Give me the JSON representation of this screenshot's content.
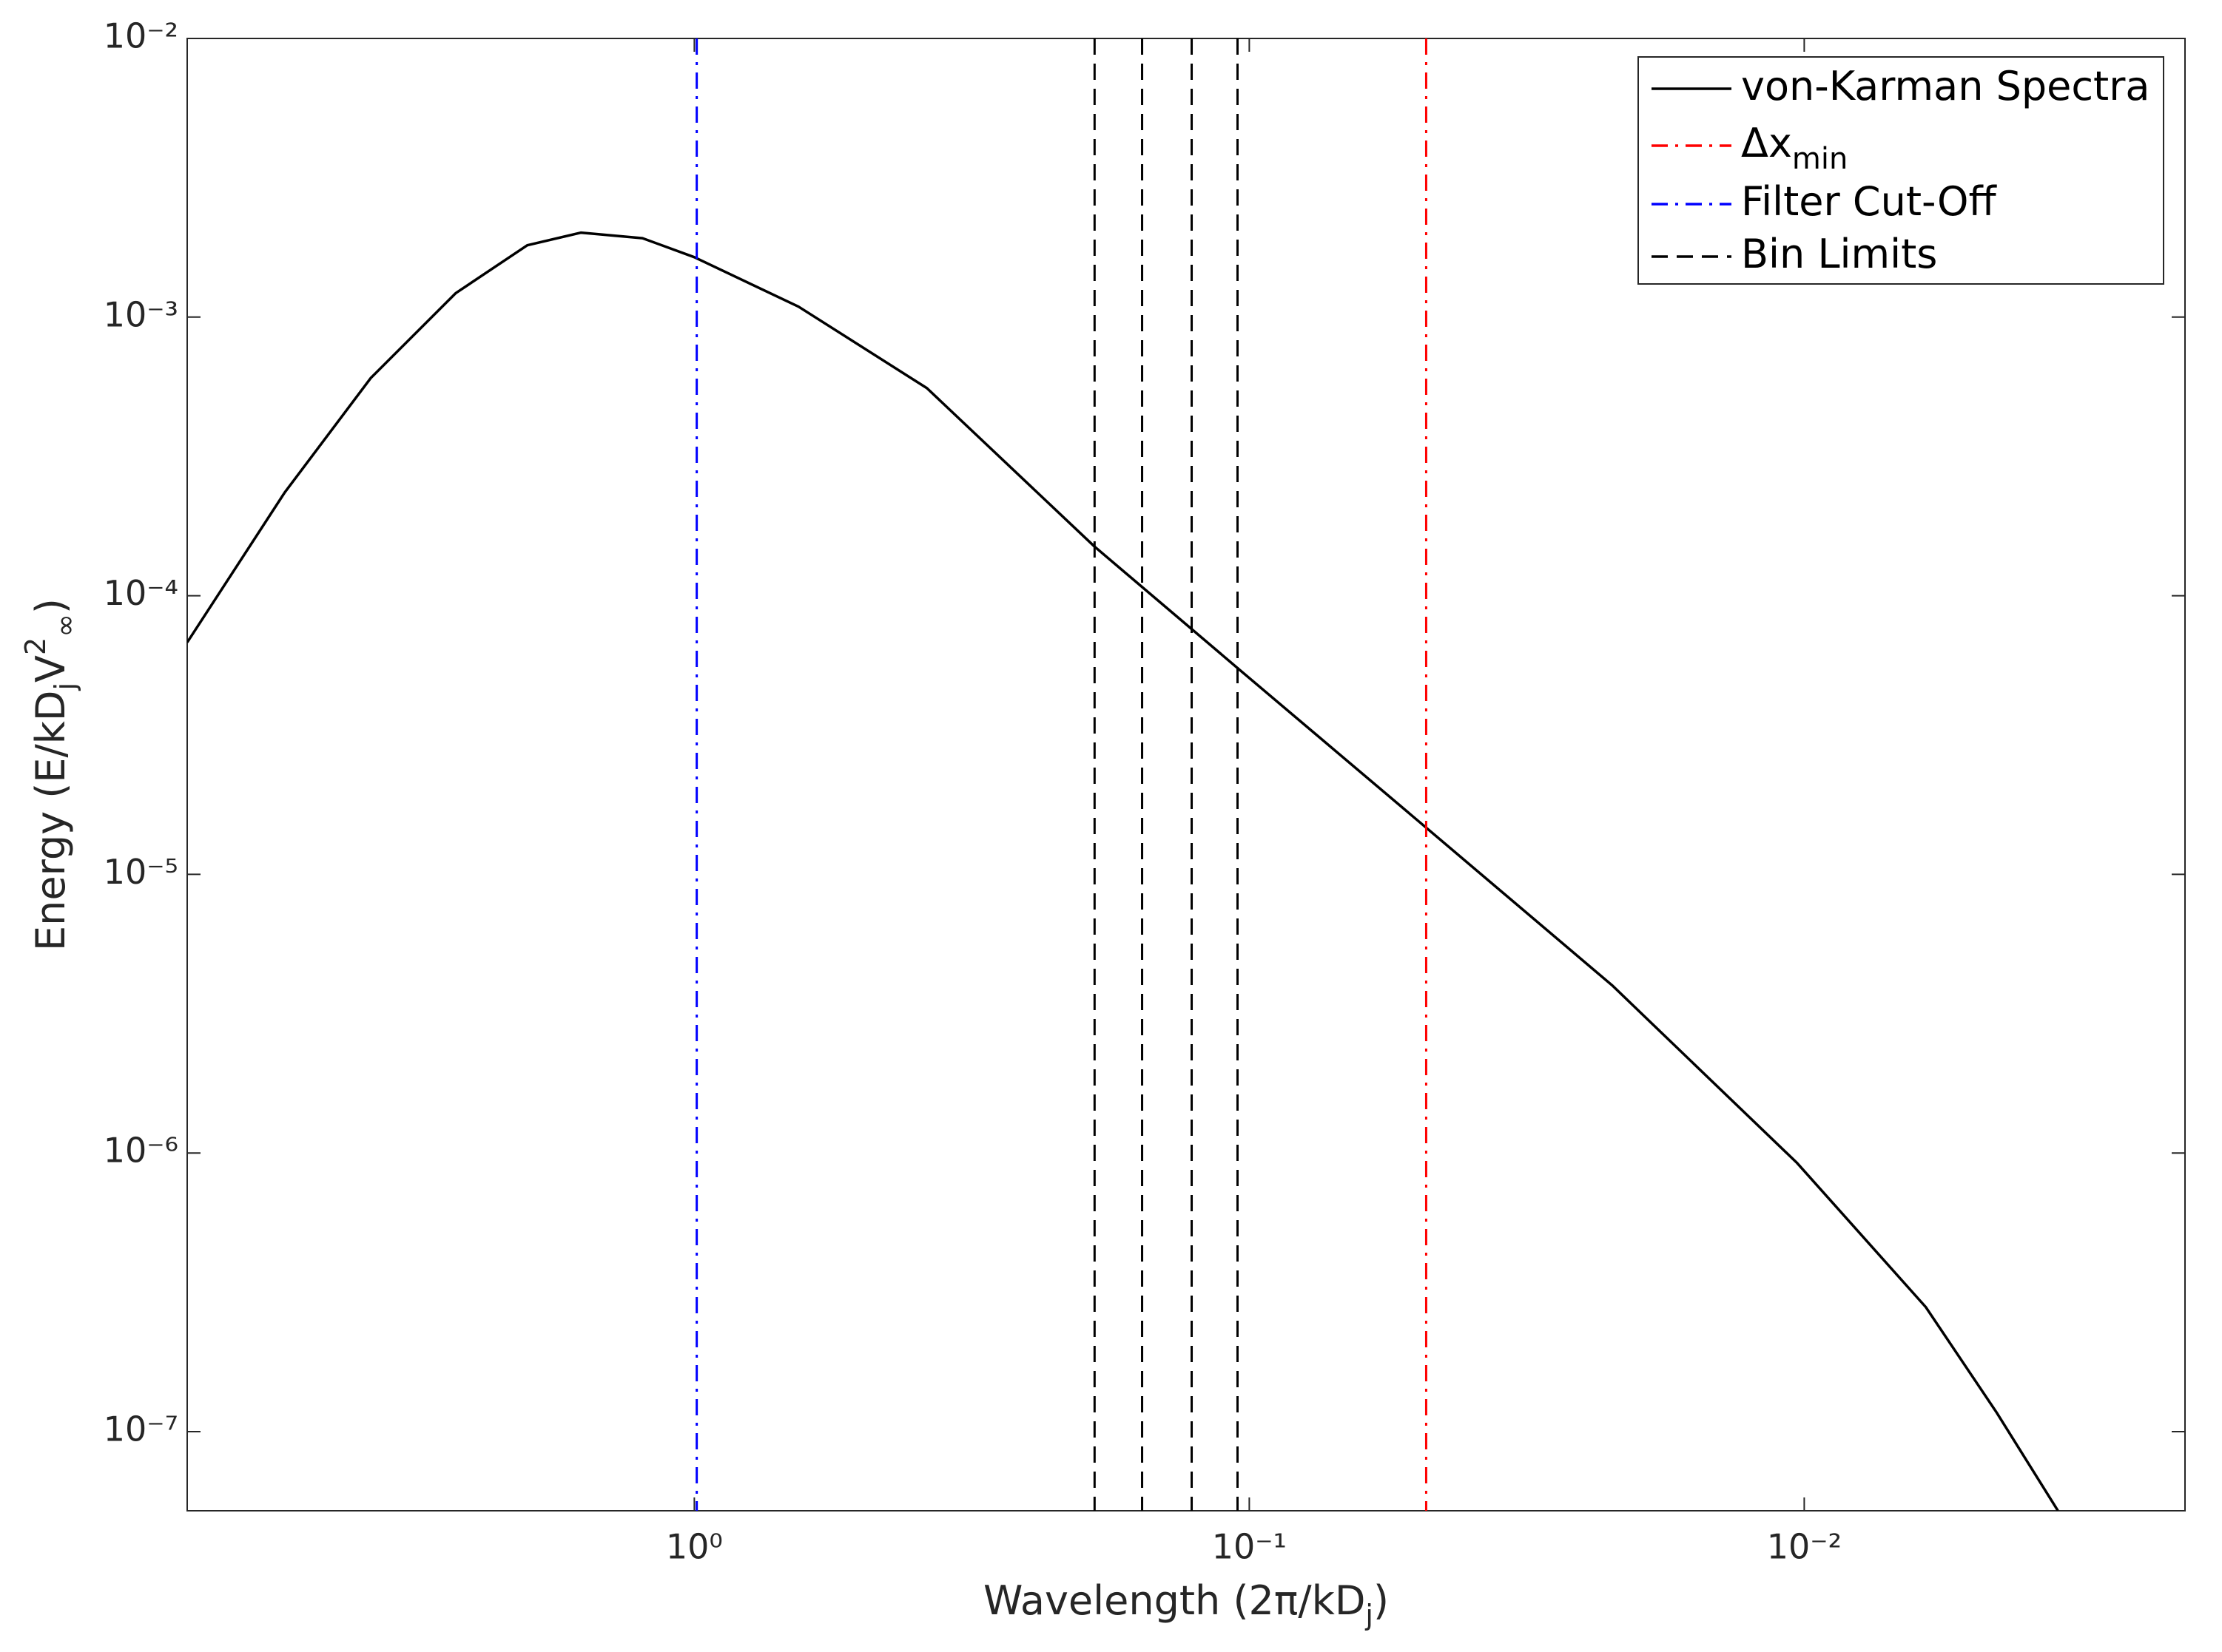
{
  "chart_data": {
    "type": "line",
    "xlabel": [
      {
        "text": "Wavelength (2π/kD"
      },
      {
        "text": "j",
        "shift": "sub"
      },
      {
        "text": ")"
      }
    ],
    "ylabel": [
      {
        "text": "Energy (E/kD"
      },
      {
        "text": "j",
        "shift": "sub"
      },
      {
        "text": "V"
      },
      {
        "text": "2",
        "shift": "sup"
      },
      {
        "text": "∞",
        "shift": "sub"
      },
      {
        "text": ")"
      }
    ],
    "xscale": "log",
    "yscale": "log",
    "x_reversed": true,
    "grid": false,
    "legend": "upper right",
    "xlim": [
      8.2,
      0.00206
    ],
    "ylim": [
      5.2e-08,
      0.01
    ],
    "xticks": [
      {
        "value": 1,
        "label": "10⁰"
      },
      {
        "value": 0.1,
        "label": "10⁻¹"
      },
      {
        "value": 0.01,
        "label": "10⁻²"
      }
    ],
    "yticks": [
      {
        "value": 1e-07,
        "label": "10⁻⁷"
      },
      {
        "value": 1e-06,
        "label": "10⁻⁶"
      },
      {
        "value": 1e-05,
        "label": "10⁻⁵"
      },
      {
        "value": 0.0001,
        "label": "10⁻⁴"
      },
      {
        "value": 0.001,
        "label": "10⁻³"
      },
      {
        "value": 0.01,
        "label": "10⁻²"
      }
    ],
    "series": [
      {
        "name": "von-Karman Spectra",
        "color": "#000000",
        "style": "solid",
        "x": [
          8.2,
          5.47,
          3.83,
          2.69,
          2.0,
          1.6,
          1.24,
          1.0,
          0.649,
          0.381,
          0.19,
          0.105,
          0.048,
          0.0222,
          0.0103,
          0.00604,
          0.0045,
          0.00349
        ],
        "values": [
          6.8e-05,
          0.000235,
          0.000604,
          0.00122,
          0.00181,
          0.00201,
          0.00192,
          0.00164,
          0.00109,
          0.000556,
          0.00015,
          5.5e-05,
          1.47e-05,
          4e-06,
          9.2e-07,
          2.8e-07,
          1.17e-07,
          5.2e-08
        ]
      },
      {
        "name": "Δx",
        "subscript": "min",
        "color": "#ff0000",
        "style": "dashdot",
        "x": [
          0.048
        ]
      },
      {
        "name": "Filter Cut-Off",
        "color": "#0000ff",
        "style": "dashdot",
        "x": [
          0.99
        ]
      },
      {
        "name": "Bin Limits",
        "color": "#000000",
        "style": "dashed",
        "x": [
          0.19,
          0.156,
          0.127,
          0.105
        ]
      }
    ]
  }
}
